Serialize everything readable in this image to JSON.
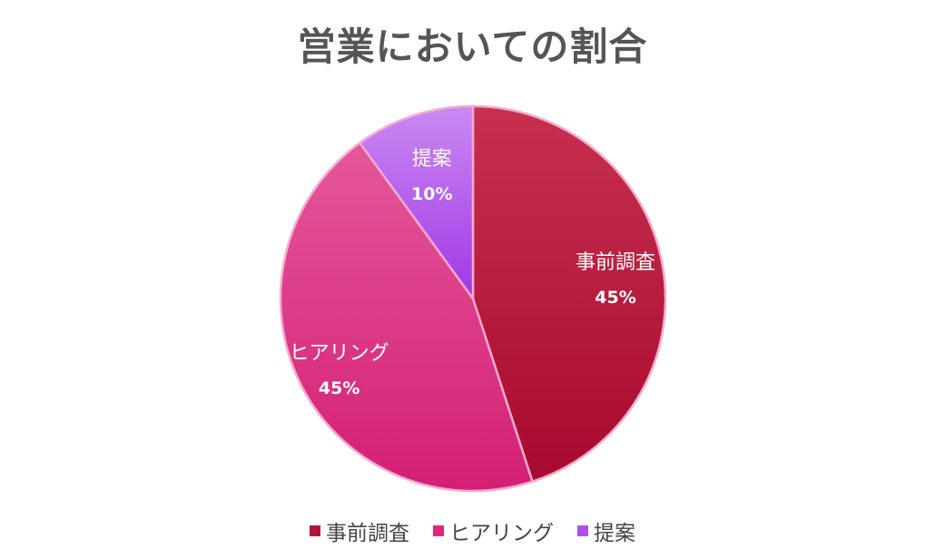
{
  "chart_data": {
    "type": "pie",
    "title": "営業においての割合",
    "slices": [
      {
        "label": "事前調査",
        "value": 45,
        "value_label": "45%",
        "color": "#B5143A"
      },
      {
        "label": "ヒアリング",
        "value": 45,
        "value_label": "45%",
        "color": "#E0287E"
      },
      {
        "label": "提案",
        "value": 10,
        "value_label": "10%",
        "color": "#B04FE8"
      }
    ],
    "legend": {
      "placement": "bottom"
    },
    "start_angle": "top, clockwise"
  }
}
